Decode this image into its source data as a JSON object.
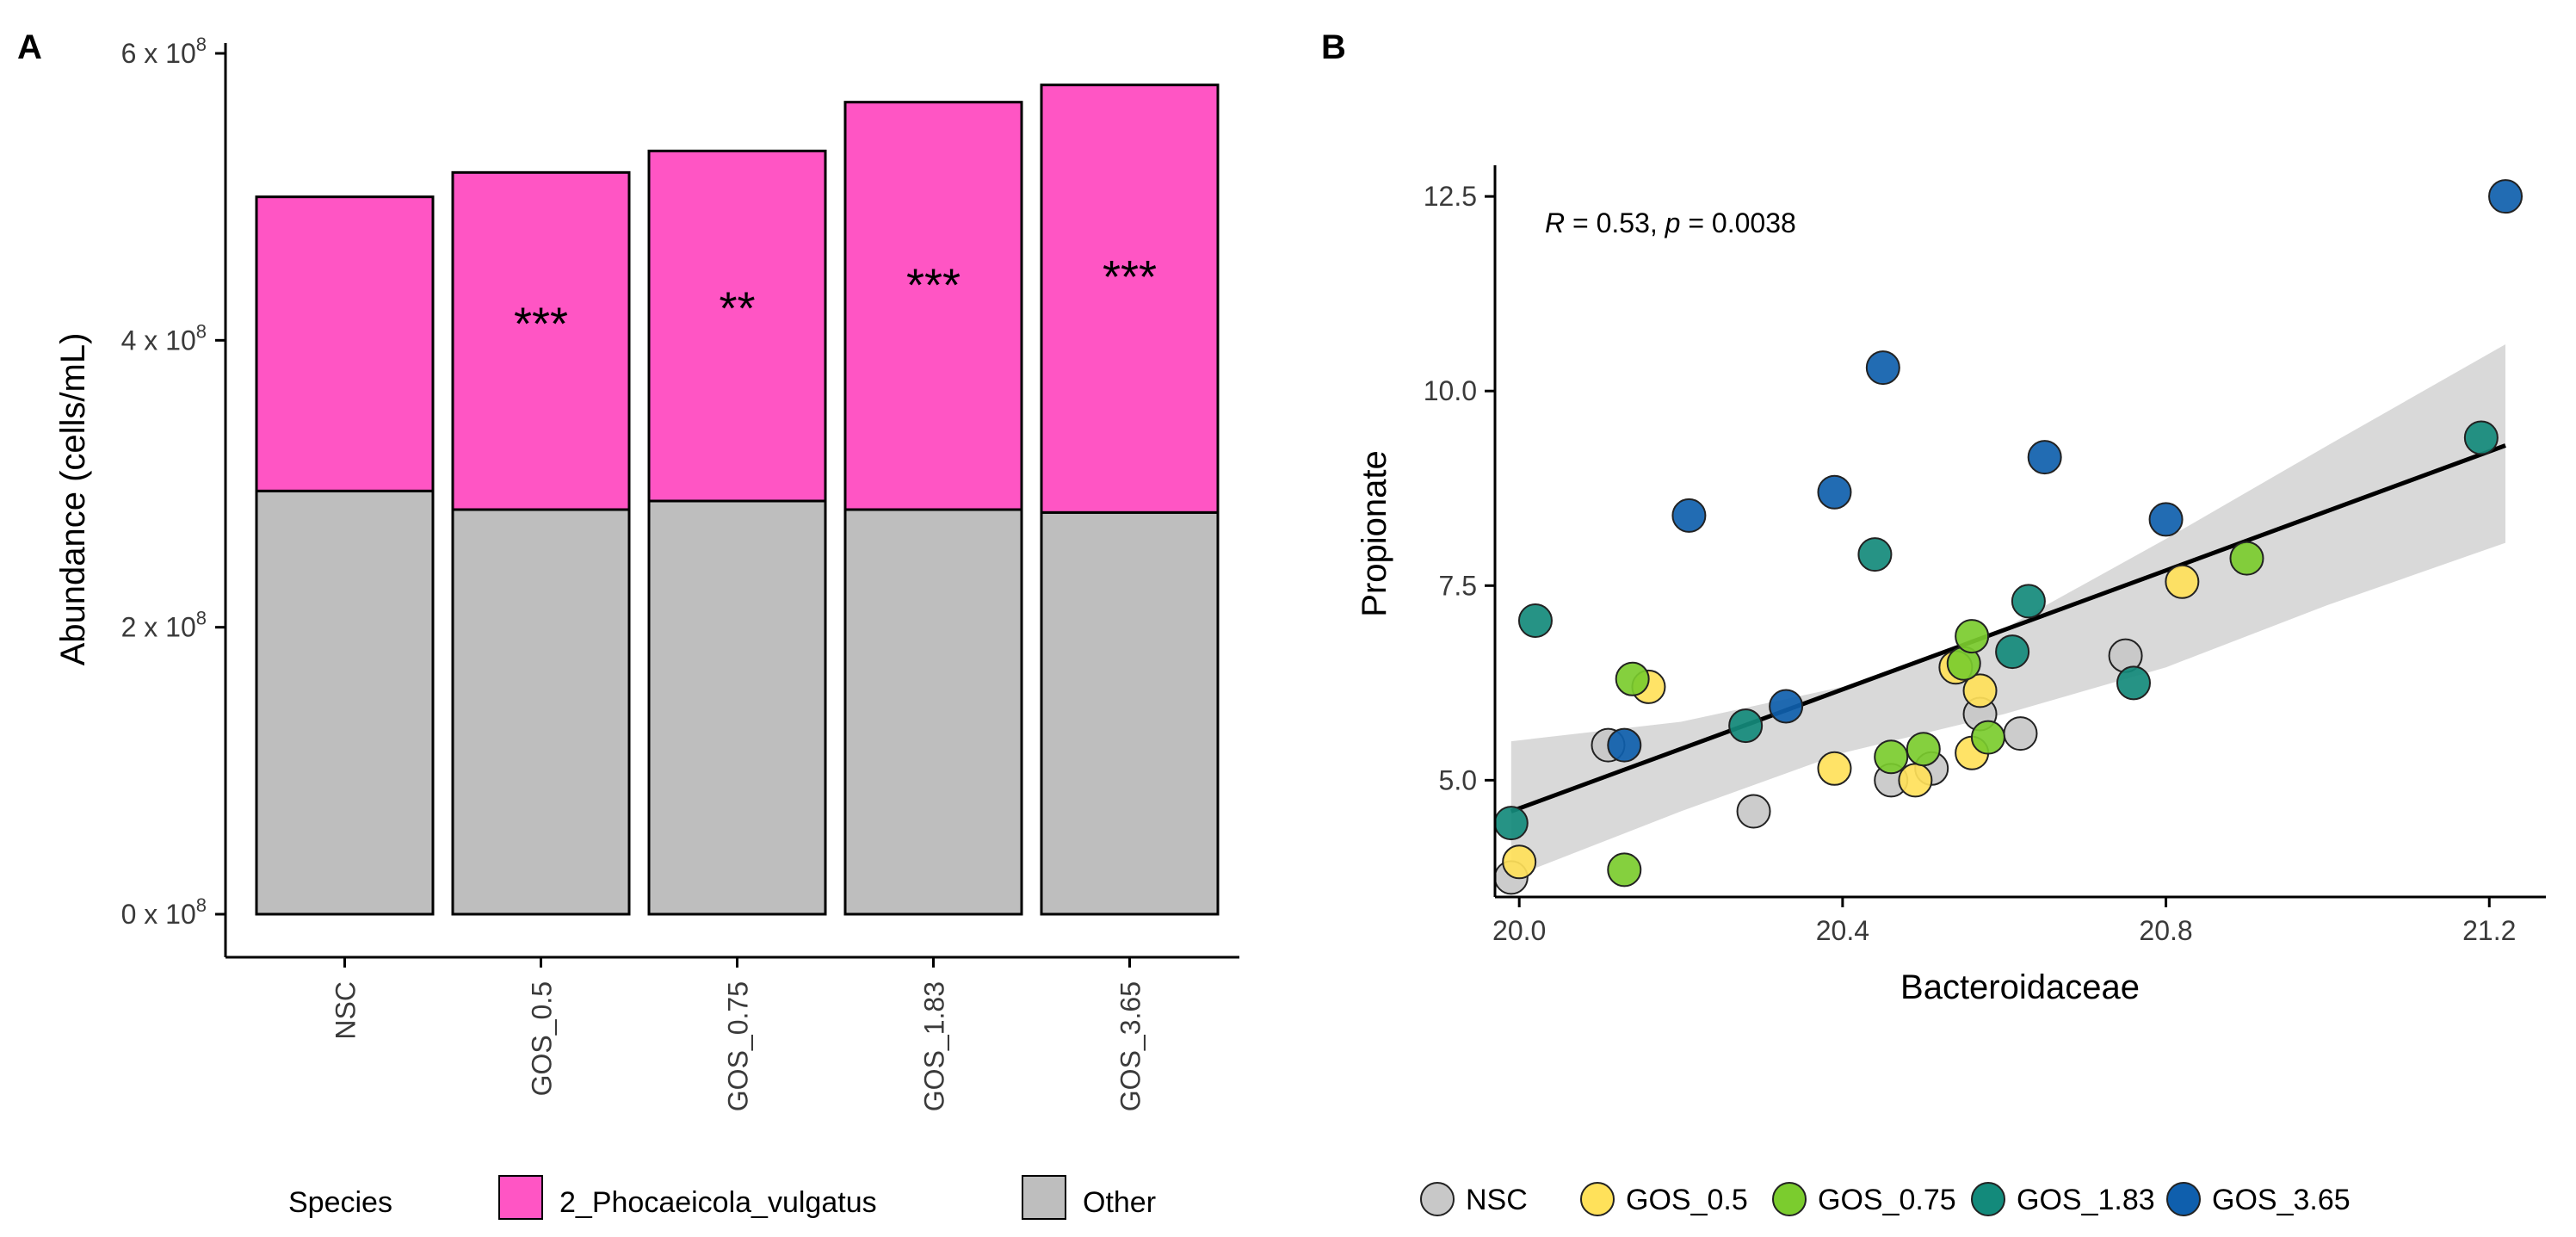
{
  "colors": {
    "pink": "#ff55c4",
    "gray": "#bebebe",
    "NSC": "#c8c8c8",
    "GOS_0.5": "#ffe15a",
    "GOS_0.75": "#7bcc2e",
    "GOS_1.83": "#138a7b",
    "GOS_3.65": "#0f5fad",
    "band": "#d9d9d9"
  },
  "chart_data": [
    {
      "panel": "A",
      "type": "bar",
      "stacked": true,
      "ylabel": "Abundance (cells/mL)",
      "xlabel": "",
      "ylim": [
        0,
        600000000.0
      ],
      "yticks": [
        {
          "value": 0,
          "mant": "0 x 10",
          "exp": "8"
        },
        {
          "value": 200000000.0,
          "mant": "2 x 10",
          "exp": "8"
        },
        {
          "value": 400000000.0,
          "mant": "4 x 10",
          "exp": "8"
        },
        {
          "value": 600000000.0,
          "mant": "6 x 10",
          "exp": "8"
        }
      ],
      "categories": [
        "NSC",
        "GOS_0.5",
        "GOS_0.75",
        "GOS_1.83",
        "GOS_3.65"
      ],
      "series": [
        {
          "name": "Other",
          "colorKey": "gray",
          "values": [
            295000000.0,
            282000000.0,
            288000000.0,
            282000000.0,
            280000000.0
          ]
        },
        {
          "name": "2_Phocaeicola_vulgatus",
          "colorKey": "pink",
          "values": [
            205000000.0,
            235000000.0,
            244000000.0,
            284000000.0,
            298000000.0
          ]
        }
      ],
      "significance": [
        "",
        "***",
        "**",
        "***",
        "***"
      ],
      "legend": {
        "title": "Species",
        "position": "bottom",
        "entries": [
          {
            "label": "2_Phocaeicola_vulgatus",
            "colorKey": "pink"
          },
          {
            "label": "Other",
            "colorKey": "gray"
          }
        ]
      }
    },
    {
      "panel": "B",
      "type": "scatter",
      "xlabel": "Bacteroidaceae",
      "ylabel": "Propionate",
      "xlim": [
        19.97,
        21.27
      ],
      "ylim": [
        3.5,
        12.9
      ],
      "xticks": [
        {
          "value": 20.0,
          "label": "20.0"
        },
        {
          "value": 20.4,
          "label": "20.4"
        },
        {
          "value": 20.8,
          "label": "20.8"
        },
        {
          "value": 21.2,
          "label": "21.2"
        }
      ],
      "yticks": [
        {
          "value": 5.0,
          "label": "5.0"
        },
        {
          "value": 7.5,
          "label": "7.5"
        },
        {
          "value": 10.0,
          "label": "10.0"
        },
        {
          "value": 12.5,
          "label": "12.5"
        }
      ],
      "annotation": {
        "r_label": "R",
        "r_text": " = 0.53, ",
        "p_label": "p",
        "p_text": " = 0.0038"
      },
      "regression": {
        "x": [
          19.99,
          21.22
        ],
        "y": [
          4.6,
          9.3
        ]
      },
      "band": {
        "upper": [
          [
            19.99,
            5.5
          ],
          [
            20.2,
            5.75
          ],
          [
            20.4,
            6.2
          ],
          [
            20.6,
            6.95
          ],
          [
            20.8,
            8.1
          ],
          [
            21.0,
            9.3
          ],
          [
            21.22,
            10.6
          ]
        ],
        "lower": [
          [
            19.99,
            3.75
          ],
          [
            20.2,
            4.6
          ],
          [
            20.4,
            5.35
          ],
          [
            20.6,
            5.85
          ],
          [
            20.8,
            6.45
          ],
          [
            21.0,
            7.25
          ],
          [
            21.22,
            8.05
          ]
        ]
      },
      "groups": [
        {
          "name": "NSC",
          "colorKey": "NSC",
          "points": [
            [
              19.99,
              3.75
            ],
            [
              20.11,
              5.45
            ],
            [
              20.29,
              4.6
            ],
            [
              20.46,
              5.0
            ],
            [
              20.51,
              5.15
            ],
            [
              20.57,
              5.85
            ],
            [
              20.62,
              5.6
            ],
            [
              20.75,
              6.6
            ]
          ]
        },
        {
          "name": "GOS_0.5",
          "colorKey": "GOS_0.5",
          "points": [
            [
              20.0,
              3.95
            ],
            [
              20.16,
              6.2
            ],
            [
              20.39,
              5.15
            ],
            [
              20.49,
              5.0
            ],
            [
              20.54,
              6.45
            ],
            [
              20.56,
              5.35
            ],
            [
              20.57,
              6.15
            ],
            [
              20.82,
              7.55
            ]
          ]
        },
        {
          "name": "GOS_0.75",
          "colorKey": "GOS_0.75",
          "points": [
            [
              20.13,
              3.85
            ],
            [
              20.14,
              6.3
            ],
            [
              20.46,
              5.3
            ],
            [
              20.5,
              5.4
            ],
            [
              20.55,
              6.5
            ],
            [
              20.56,
              6.85
            ],
            [
              20.58,
              5.55
            ],
            [
              20.9,
              7.85
            ]
          ]
        },
        {
          "name": "GOS_1.83",
          "colorKey": "GOS_1.83",
          "points": [
            [
              19.99,
              4.45
            ],
            [
              20.02,
              7.05
            ],
            [
              20.28,
              5.7
            ],
            [
              20.44,
              7.9
            ],
            [
              20.61,
              6.65
            ],
            [
              20.63,
              7.3
            ],
            [
              20.76,
              6.25
            ],
            [
              21.19,
              9.4
            ]
          ]
        },
        {
          "name": "GOS_3.65",
          "colorKey": "GOS_3.65",
          "points": [
            [
              20.13,
              5.45
            ],
            [
              20.21,
              8.4
            ],
            [
              20.33,
              5.95
            ],
            [
              20.39,
              8.7
            ],
            [
              20.45,
              10.3
            ],
            [
              20.65,
              9.15
            ],
            [
              20.8,
              8.35
            ],
            [
              21.22,
              12.5
            ]
          ]
        }
      ],
      "legend": {
        "position": "bottom",
        "entries": [
          {
            "label": "NSC",
            "colorKey": "NSC"
          },
          {
            "label": "GOS_0.5",
            "colorKey": "GOS_0.5"
          },
          {
            "label": "GOS_0.75",
            "colorKey": "GOS_0.75"
          },
          {
            "label": "GOS_1.83",
            "colorKey": "GOS_1.83"
          },
          {
            "label": "GOS_3.65",
            "colorKey": "GOS_3.65"
          }
        ]
      }
    }
  ]
}
